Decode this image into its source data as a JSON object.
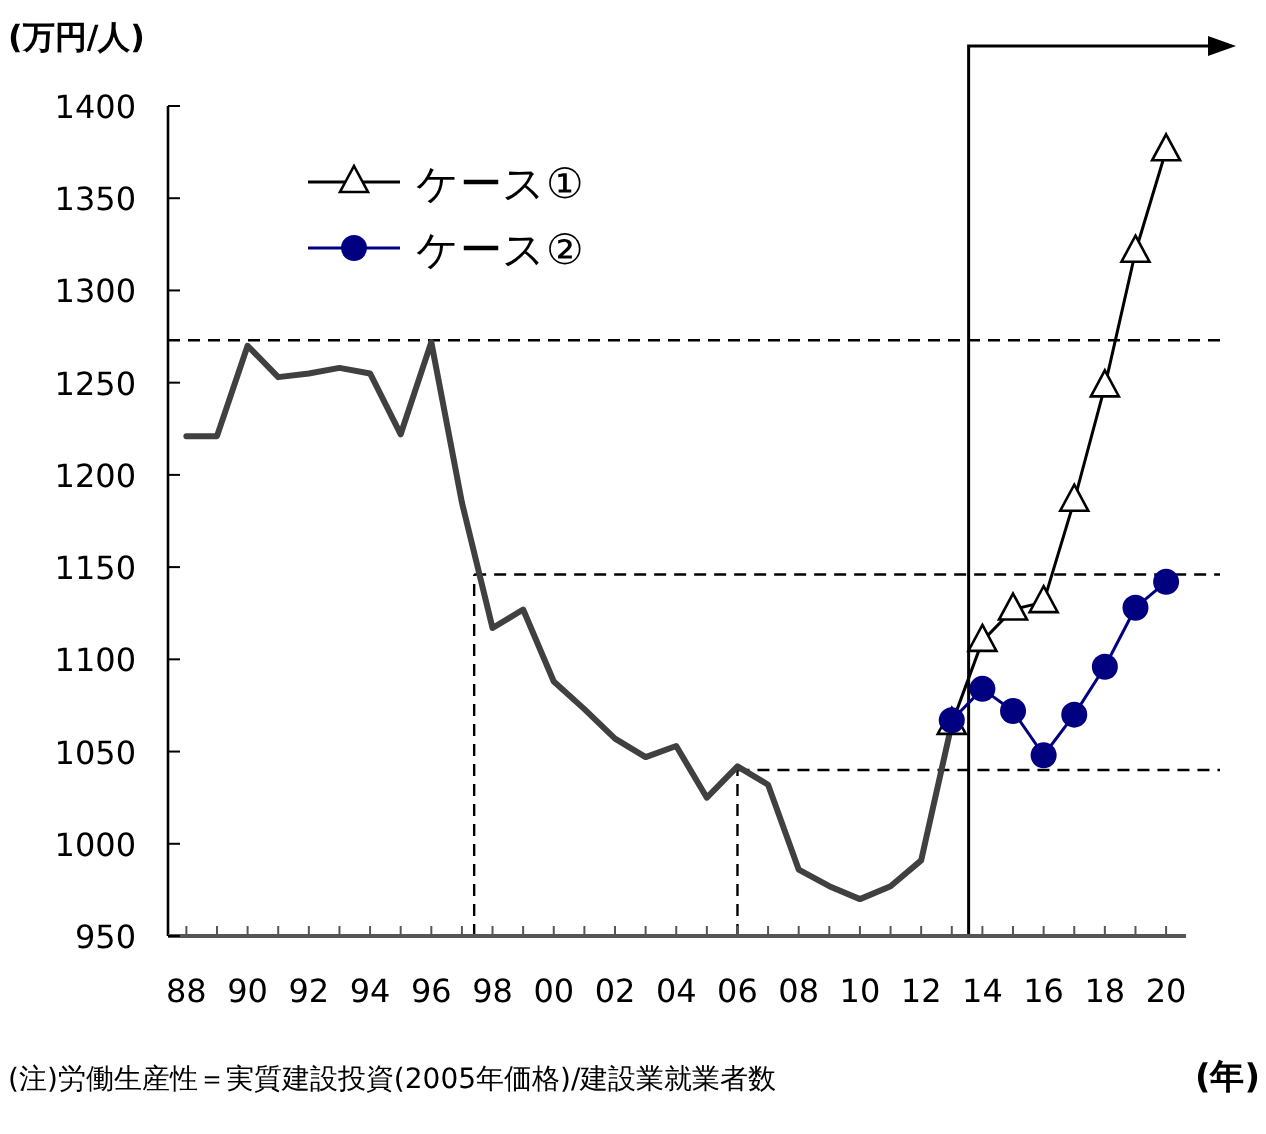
{
  "chart_data": {
    "type": "line",
    "ylabel": "(万円/人)",
    "xlabel": "(年)",
    "annotations": [
      "(注)労働生産性＝実質建設投資(2005年価格)/建設業就業者数"
    ],
    "xlim": [
      1987.4,
      2020.65
    ],
    "ylim": [
      950,
      1400
    ],
    "yticks": [
      950,
      1000,
      1050,
      1100,
      1150,
      1200,
      1250,
      1300,
      1350,
      1400
    ],
    "xticks": [
      {
        "value": 1988,
        "label": "88"
      },
      {
        "value": 1989,
        "label": null
      },
      {
        "value": 1990,
        "label": "90"
      },
      {
        "value": 1991,
        "label": null
      },
      {
        "value": 1992,
        "label": "92"
      },
      {
        "value": 1993,
        "label": null
      },
      {
        "value": 1994,
        "label": "94"
      },
      {
        "value": 1995,
        "label": null
      },
      {
        "value": 1996,
        "label": "96"
      },
      {
        "value": 1997,
        "label": null
      },
      {
        "value": 1998,
        "label": "98"
      },
      {
        "value": 1999,
        "label": null
      },
      {
        "value": 2000,
        "label": "00"
      },
      {
        "value": 2001,
        "label": null
      },
      {
        "value": 2002,
        "label": "02"
      },
      {
        "value": 2003,
        "label": null
      },
      {
        "value": 2004,
        "label": "04"
      },
      {
        "value": 2005,
        "label": null
      },
      {
        "value": 2006,
        "label": "06"
      },
      {
        "value": 2007,
        "label": null
      },
      {
        "value": 2008,
        "label": "08"
      },
      {
        "value": 2009,
        "label": null
      },
      {
        "value": 2010,
        "label": "10"
      },
      {
        "value": 2011,
        "label": null
      },
      {
        "value": 2012,
        "label": "12"
      },
      {
        "value": 2013,
        "label": null
      },
      {
        "value": 2014,
        "label": "14"
      },
      {
        "value": 2015,
        "label": null
      },
      {
        "value": 2016,
        "label": "16"
      },
      {
        "value": 2017,
        "label": null
      },
      {
        "value": 2018,
        "label": "18"
      },
      {
        "value": 2019,
        "label": null
      },
      {
        "value": 2020,
        "label": "20"
      }
    ],
    "grid": false,
    "legend": "top left",
    "series": [
      {
        "color": "#404040",
        "marker": "none",
        "x": [
          1988,
          1989,
          1990,
          1991,
          1992,
          1993,
          1994,
          1995,
          1996,
          1997,
          1998,
          1999,
          2000,
          2001,
          2002,
          2003,
          2004,
          2005,
          2006,
          2007,
          2008,
          2009,
          2010,
          2011,
          2012,
          2013
        ],
        "values": [
          1221,
          1221,
          1270,
          1253,
          1255,
          1258,
          1255,
          1222,
          1272,
          1185,
          1117,
          1127,
          1088,
          1073,
          1057,
          1047,
          1053,
          1025,
          1042,
          1032,
          986,
          977,
          970,
          977,
          991,
          1065
        ]
      },
      {
        "name": "ケース①",
        "color": "#000000",
        "marker": "triangle",
        "x": [
          2013,
          2014,
          2015,
          2016,
          2017,
          2018,
          2019,
          2020
        ],
        "values": [
          1065,
          1110,
          1127,
          1131,
          1186,
          1248,
          1321,
          1376
        ]
      },
      {
        "name": "ケース②",
        "color": "#000080",
        "marker": "circle",
        "x": [
          2013,
          2014,
          2015,
          2016,
          2017,
          2018,
          2019,
          2020
        ],
        "values": [
          1067,
          1084,
          1072,
          1048,
          1070,
          1096,
          1128,
          1142
        ]
      }
    ],
    "ref_lines": [
      {
        "axis": "y",
        "value": 1273,
        "line_style": "dashed",
        "color": "#000000"
      },
      {
        "axis": "x",
        "value": 1997.4,
        "line_style": "dashed",
        "color": "#000000"
      },
      {
        "axis": "y",
        "value": 1146,
        "line_style": "dashed",
        "color": "#000000"
      },
      {
        "axis": "x",
        "value": 2006,
        "line_style": "dashed",
        "color": "#000000"
      },
      {
        "axis": "y",
        "value": 1040,
        "line_style": "dashed",
        "color": "#000000"
      },
      {
        "axis": "x",
        "value": 2013.55,
        "line_style": "solid",
        "color": "#000000"
      }
    ]
  }
}
